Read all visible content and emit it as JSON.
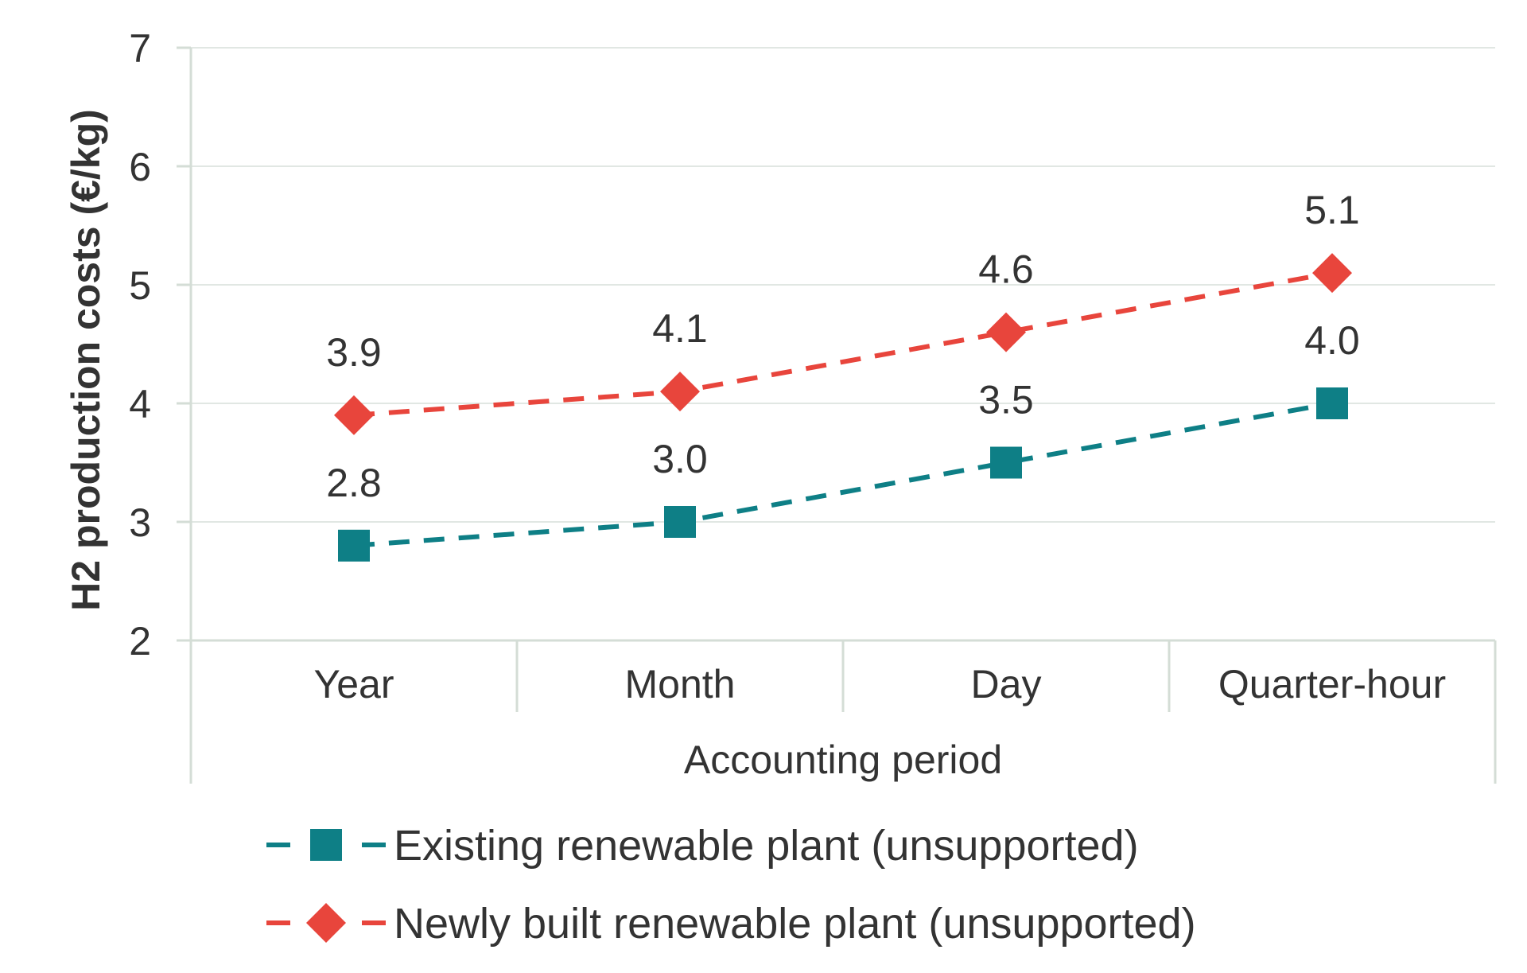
{
  "chart_data": {
    "type": "line",
    "xlabel": "Accounting period",
    "ylabel": "H2 production costs (€/kg)",
    "categories": [
      "Year",
      "Month",
      "Day",
      "Quarter-hour"
    ],
    "ylim": [
      2,
      7
    ],
    "yticks": [
      2,
      3,
      4,
      5,
      6,
      7
    ],
    "grid": true,
    "legend_position": "bottom",
    "series": [
      {
        "name": "Existing renewable plant (unsupported)",
        "values": [
          2.8,
          3.0,
          3.5,
          4.0
        ],
        "labels": [
          "2.8",
          "3.0",
          "3.5",
          "4.0"
        ],
        "color": "#0e7f86",
        "marker": "square",
        "line_style": "dashed"
      },
      {
        "name": "Newly built renewable plant (unsupported)",
        "values": [
          3.9,
          4.1,
          4.6,
          5.1
        ],
        "labels": [
          "3.9",
          "4.1",
          "4.6",
          "5.1"
        ],
        "color": "#e8453c",
        "marker": "diamond",
        "line_style": "dashed"
      }
    ]
  },
  "colors": {
    "gridline": "#e1e7e3",
    "axis": "#d4ddd6",
    "text": "#333333"
  }
}
